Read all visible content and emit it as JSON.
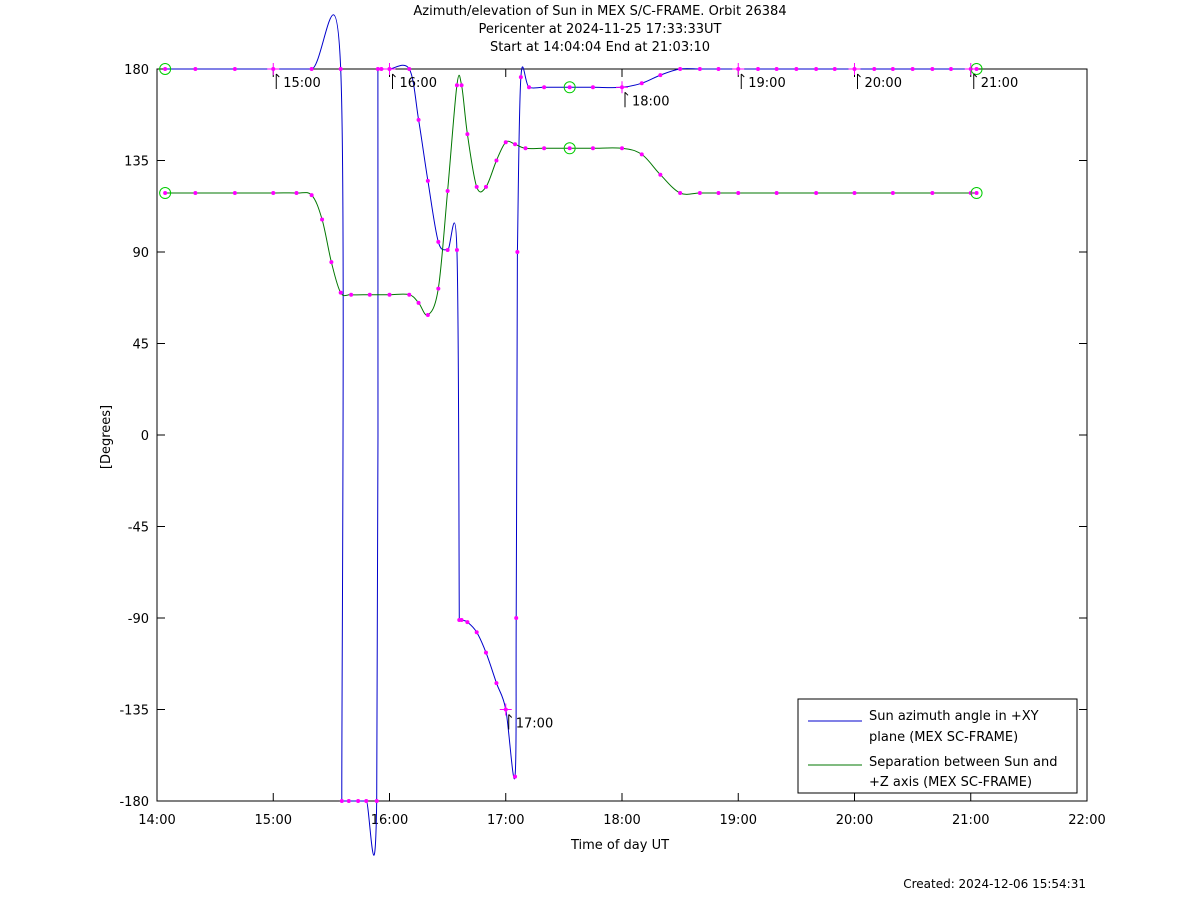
{
  "header": {
    "title": "Azimuth/elevation of Sun in MEX S/C-FRAME.  Orbit 26384",
    "pericenter": "Pericenter at 2024-11-25 17:33:33UT",
    "span": "Start at 14:04:04 End at 21:03:10"
  },
  "footer": {
    "created": "Created: 2024-12-06 15:54:31"
  },
  "colors": {
    "azimuth": "#0000cc",
    "separation": "#007700",
    "marker": "#ff00ff",
    "circle": "#00cc00"
  },
  "chart_data": {
    "type": "line",
    "xlabel": "Time of day UT",
    "ylabel": "[Degrees]",
    "xlim": [
      14.0,
      22.0
    ],
    "ylim": [
      -180,
      180
    ],
    "x_ticks": [
      14,
      15,
      16,
      17,
      18,
      19,
      20,
      21,
      22
    ],
    "x_tick_labels": [
      "14:00",
      "15:00",
      "16:00",
      "17:00",
      "18:00",
      "19:00",
      "20:00",
      "21:00",
      "22:00"
    ],
    "y_ticks": [
      180,
      135,
      90,
      45,
      0,
      -45,
      -90,
      -135,
      -180
    ],
    "y_tick_labels": [
      "180",
      "135",
      "90",
      "45",
      "0",
      "-45",
      "-90",
      "-135",
      "-180"
    ],
    "legend_position": "bottom-right",
    "series": [
      {
        "name": "Sun azimuth angle in +XY plane (MEX SC-FRAME)",
        "legend_lines": [
          "Sun azimuth angle in +XY",
          "plane (MEX SC-FRAME)"
        ],
        "x": [
          14.07,
          14.33,
          14.67,
          15.0,
          15.33,
          15.58,
          15.59,
          15.65,
          15.73,
          15.8,
          15.89,
          15.9,
          15.93,
          16.0,
          16.17,
          16.25,
          16.33,
          16.42,
          16.5,
          16.58,
          16.6,
          16.62,
          16.67,
          16.75,
          16.83,
          16.92,
          17.0,
          17.08,
          17.09,
          17.1,
          17.13,
          17.2,
          17.33,
          17.55,
          17.75,
          18.0,
          18.17,
          18.33,
          18.5,
          18.67,
          18.83,
          19.0,
          19.17,
          19.33,
          19.5,
          19.67,
          19.83,
          20.0,
          20.17,
          20.33,
          20.5,
          20.67,
          20.83,
          21.0,
          21.05
        ],
        "y": [
          180,
          180,
          180,
          180,
          180,
          180,
          -180,
          -180,
          -180,
          -180,
          -180,
          180,
          180,
          180,
          180,
          155,
          125,
          95,
          91,
          91,
          -91,
          -91,
          -92,
          -97,
          -107,
          -122,
          -135,
          -168,
          -90,
          90,
          176,
          171,
          171,
          171,
          171,
          171,
          173,
          177,
          180,
          180,
          180,
          180,
          180,
          180,
          180,
          180,
          180,
          180,
          180,
          180,
          180,
          180,
          180,
          180,
          180
        ]
      },
      {
        "name": "Separation between Sun and +Z axis (MEX SC-FRAME)",
        "legend_lines": [
          "Separation between Sun and",
          "+Z axis (MEX SC-FRAME)"
        ],
        "x": [
          14.07,
          14.33,
          14.67,
          15.0,
          15.2,
          15.33,
          15.42,
          15.5,
          15.58,
          15.67,
          15.83,
          16.0,
          16.17,
          16.25,
          16.33,
          16.42,
          16.5,
          16.58,
          16.62,
          16.67,
          16.75,
          16.83,
          16.92,
          17.0,
          17.08,
          17.17,
          17.33,
          17.55,
          17.75,
          18.0,
          18.17,
          18.33,
          18.5,
          18.67,
          18.83,
          19.0,
          19.33,
          19.67,
          20.0,
          20.33,
          20.67,
          21.0,
          21.05
        ],
        "y": [
          119,
          119,
          119,
          119,
          119,
          118,
          106,
          85,
          70,
          69,
          69,
          69,
          69,
          65,
          59,
          72,
          120,
          172,
          172,
          148,
          122,
          122,
          135,
          144,
          143,
          141,
          141,
          141,
          141,
          141,
          138,
          128,
          119,
          119,
          119,
          119,
          119,
          119,
          119,
          119,
          119,
          119,
          119
        ]
      }
    ],
    "hour_annotations": [
      {
        "label": "15:00",
        "x": 15.0,
        "y": 180
      },
      {
        "label": "16:00",
        "x": 16.0,
        "y": 180
      },
      {
        "label": "17:00",
        "x": 17.0,
        "y": -135
      },
      {
        "label": "18:00",
        "x": 18.0,
        "y": 171
      },
      {
        "label": "19:00",
        "x": 19.0,
        "y": 180
      },
      {
        "label": "20:00",
        "x": 20.0,
        "y": 180
      },
      {
        "label": "21:00",
        "x": 21.0,
        "y": 180
      }
    ],
    "circle_markers": [
      {
        "x": 14.07,
        "y": 180
      },
      {
        "x": 14.07,
        "y": 119
      },
      {
        "x": 17.55,
        "y": 171
      },
      {
        "x": 17.55,
        "y": 141
      },
      {
        "x": 21.05,
        "y": 180
      },
      {
        "x": 21.05,
        "y": 119
      }
    ]
  }
}
